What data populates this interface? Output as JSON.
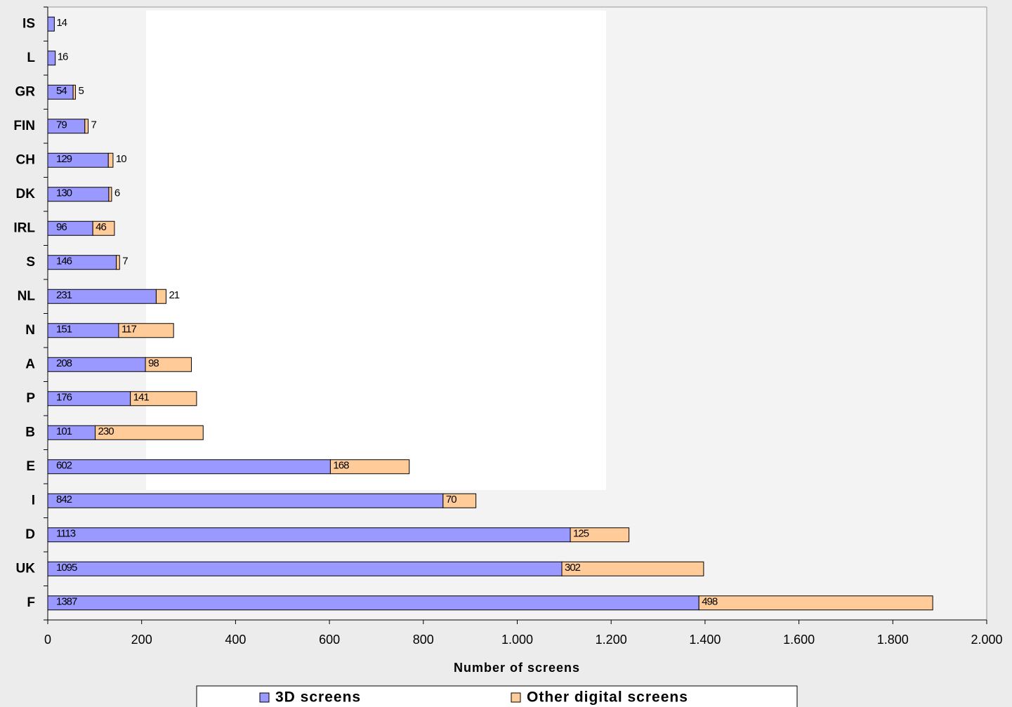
{
  "chart_data": {
    "type": "stacked-barh",
    "categories": [
      "IS",
      "L",
      "GR",
      "FIN",
      "CH",
      "DK",
      "IRL",
      "S",
      "NL",
      "N",
      "A",
      "P",
      "B",
      "E",
      "I",
      "D",
      "UK",
      "F"
    ],
    "series": [
      {
        "name": "3D screens",
        "color": "#9999ff",
        "values": [
          14,
          16,
          54,
          79,
          129,
          130,
          96,
          146,
          231,
          151,
          208,
          176,
          101,
          602,
          842,
          1113,
          1095,
          1387
        ]
      },
      {
        "name": "Other digital screens",
        "color": "#ffcc99",
        "values": [
          null,
          null,
          5,
          7,
          10,
          6,
          46,
          7,
          21,
          117,
          98,
          141,
          230,
          168,
          70,
          125,
          302,
          498
        ]
      }
    ],
    "xlim": [
      0,
      2000
    ],
    "xticks": [
      0,
      200,
      400,
      600,
      800,
      {
        "value": 1000,
        "label": "1.000"
      },
      {
        "value": 1200,
        "label": "1.200"
      },
      {
        "value": 1400,
        "label": "1.400"
      },
      {
        "value": 1600,
        "label": "1.600"
      },
      {
        "value": 1800,
        "label": "1.800"
      },
      {
        "value": 2000,
        "label": "2.000"
      }
    ],
    "xlabel": "Number of screens",
    "legend": "bottom"
  }
}
